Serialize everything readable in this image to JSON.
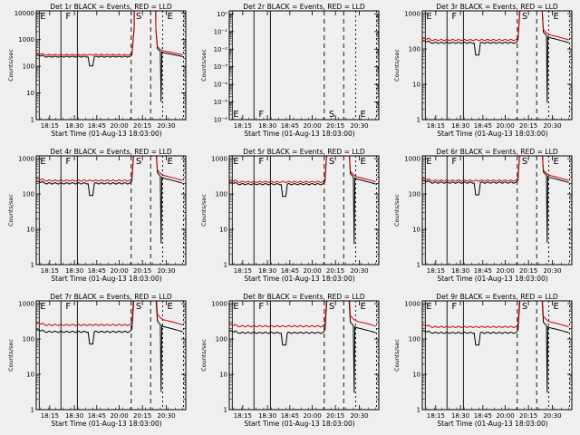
{
  "figure": {
    "background": "#efefef",
    "colors": {
      "events": "#000000",
      "lld": "#d00000"
    },
    "shared": {
      "xlabel": "Start Time (01-Aug-13 18:03:00)",
      "ylabel": "Counts/sec",
      "xticks": [
        "18:15",
        "18:30",
        "18:45",
        "20:00",
        "20:15",
        "20:30"
      ],
      "yscale": "log"
    }
  },
  "chart_data": [
    {
      "type": "line",
      "title": "Det 1r BLACK = Events, RED = LLD",
      "ylim": [
        1,
        12000
      ],
      "yticks": [
        "1",
        "10",
        "100",
        "1000",
        "10000"
      ],
      "events_level": 230,
      "lld_level": 270,
      "has_data": true,
      "markers": [
        "E",
        "F",
        "S",
        "E"
      ],
      "series": [
        {
          "name": "Events",
          "color": "#000000"
        },
        {
          "name": "LLD",
          "color": "#d00000"
        }
      ]
    },
    {
      "type": "line",
      "title": "Det 2r BLACK = Events, RED = LLD",
      "ylim": [
        1e-06,
        1.5
      ],
      "yticks": [
        "10⁻⁶",
        "10⁻⁵",
        "10⁻⁴",
        "10⁻³",
        "10⁻²",
        "10⁻¹",
        "10⁰"
      ],
      "events_level": 0,
      "lld_level": 0,
      "has_data": false,
      "markers": [
        "E",
        "F",
        "S",
        "E"
      ],
      "series": [
        {
          "name": "Events",
          "color": "#000000"
        },
        {
          "name": "LLD",
          "color": "#d00000"
        }
      ]
    },
    {
      "type": "line",
      "title": "Det 3r BLACK = Events, RED = LLD",
      "ylim": [
        1,
        1200
      ],
      "yticks": [
        "1",
        "10",
        "100",
        "1000"
      ],
      "events_level": 150,
      "lld_level": 180,
      "has_data": true,
      "markers": [
        "E",
        "F",
        "S",
        "E"
      ],
      "series": [
        {
          "name": "Events",
          "color": "#000000"
        },
        {
          "name": "LLD",
          "color": "#d00000"
        }
      ]
    },
    {
      "type": "line",
      "title": "Det 4r BLACK = Events, RED = LLD",
      "ylim": [
        1,
        1200
      ],
      "yticks": [
        "1",
        "10",
        "100",
        "1000"
      ],
      "events_level": 200,
      "lld_level": 240,
      "has_data": true,
      "markers": [
        "E",
        "F",
        "S",
        "E"
      ],
      "series": [
        {
          "name": "Events",
          "color": "#000000"
        },
        {
          "name": "LLD",
          "color": "#d00000"
        }
      ]
    },
    {
      "type": "line",
      "title": "Det 5r BLACK = Events, RED = LLD",
      "ylim": [
        1,
        1200
      ],
      "yticks": [
        "1",
        "10",
        "100",
        "1000"
      ],
      "events_level": 190,
      "lld_level": 220,
      "has_data": true,
      "markers": [
        "E",
        "F",
        "S",
        "E"
      ],
      "series": [
        {
          "name": "Events",
          "color": "#000000"
        },
        {
          "name": "LLD",
          "color": "#d00000"
        }
      ]
    },
    {
      "type": "line",
      "title": "Det 6r BLACK = Events, RED = LLD",
      "ylim": [
        1,
        1200
      ],
      "yticks": [
        "1",
        "10",
        "100",
        "1000"
      ],
      "events_level": 210,
      "lld_level": 240,
      "has_data": true,
      "markers": [
        "E",
        "F",
        "S",
        "E"
      ],
      "series": [
        {
          "name": "Events",
          "color": "#000000"
        },
        {
          "name": "LLD",
          "color": "#d00000"
        }
      ]
    },
    {
      "type": "line",
      "title": "Det 7r BLACK = Events, RED = LLD",
      "ylim": [
        1,
        1200
      ],
      "yticks": [
        "1",
        "10",
        "100",
        "1000"
      ],
      "events_level": 160,
      "lld_level": 250,
      "has_data": true,
      "markers": [
        "E",
        "F",
        "S",
        "E"
      ],
      "series": [
        {
          "name": "Events",
          "color": "#000000"
        },
        {
          "name": "LLD",
          "color": "#d00000"
        }
      ]
    },
    {
      "type": "line",
      "title": "Det 8r BLACK = Events, RED = LLD",
      "ylim": [
        1,
        1200
      ],
      "yticks": [
        "1",
        "10",
        "100",
        "1000"
      ],
      "events_level": 150,
      "lld_level": 230,
      "has_data": true,
      "markers": [
        "E",
        "F",
        "S",
        "E"
      ],
      "series": [
        {
          "name": "Events",
          "color": "#000000"
        },
        {
          "name": "LLD",
          "color": "#d00000"
        }
      ]
    },
    {
      "type": "line",
      "title": "Det 9r BLACK = Events, RED = LLD",
      "ylim": [
        1,
        1200
      ],
      "yticks": [
        "1",
        "10",
        "100",
        "1000"
      ],
      "events_level": 150,
      "lld_level": 220,
      "has_data": true,
      "markers": [
        "E",
        "F",
        "S",
        "E"
      ],
      "series": [
        {
          "name": "Events",
          "color": "#000000"
        },
        {
          "name": "LLD",
          "color": "#d00000"
        }
      ]
    }
  ]
}
